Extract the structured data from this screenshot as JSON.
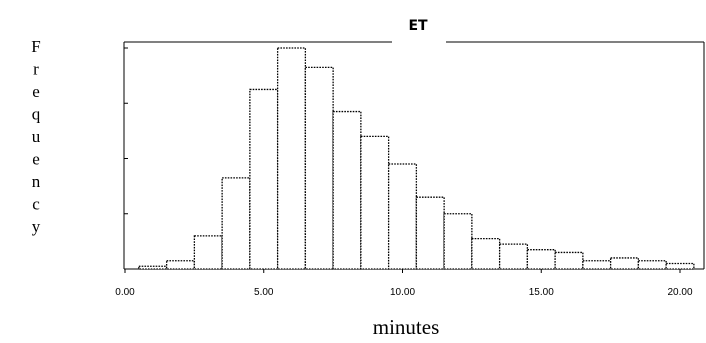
{
  "chart_data": {
    "type": "bar",
    "title": "ET",
    "xlabel": "minutes",
    "ylabel": "Frequency",
    "xlim": [
      0,
      20
    ],
    "x_ticks": [
      "0.00",
      "5.00",
      "10.00",
      "15.00",
      "20.00"
    ],
    "y_ticks_labeled": false,
    "grid": false,
    "bin_width": 1,
    "bins": [
      {
        "x0": 0.5,
        "x1": 1.5,
        "value": 1
      },
      {
        "x0": 1.5,
        "x1": 2.5,
        "value": 3
      },
      {
        "x0": 2.5,
        "x1": 3.5,
        "value": 12
      },
      {
        "x0": 3.5,
        "x1": 4.5,
        "value": 33
      },
      {
        "x0": 4.5,
        "x1": 5.5,
        "value": 65
      },
      {
        "x0": 5.5,
        "x1": 6.5,
        "value": 80
      },
      {
        "x0": 6.5,
        "x1": 7.5,
        "value": 73
      },
      {
        "x0": 7.5,
        "x1": 8.5,
        "value": 57
      },
      {
        "x0": 8.5,
        "x1": 9.5,
        "value": 48
      },
      {
        "x0": 9.5,
        "x1": 10.5,
        "value": 38
      },
      {
        "x0": 10.5,
        "x1": 11.5,
        "value": 26
      },
      {
        "x0": 11.5,
        "x1": 12.5,
        "value": 20
      },
      {
        "x0": 12.5,
        "x1": 13.5,
        "value": 11
      },
      {
        "x0": 13.5,
        "x1": 14.5,
        "value": 9
      },
      {
        "x0": 14.5,
        "x1": 15.5,
        "value": 7
      },
      {
        "x0": 15.5,
        "x1": 16.5,
        "value": 6
      },
      {
        "x0": 16.5,
        "x1": 17.5,
        "value": 3
      },
      {
        "x0": 17.5,
        "x1": 18.5,
        "value": 4
      },
      {
        "x0": 18.5,
        "x1": 19.5,
        "value": 3
      },
      {
        "x0": 19.5,
        "x1": 20.5,
        "value": 2
      }
    ],
    "ylim": [
      0,
      80
    ]
  }
}
